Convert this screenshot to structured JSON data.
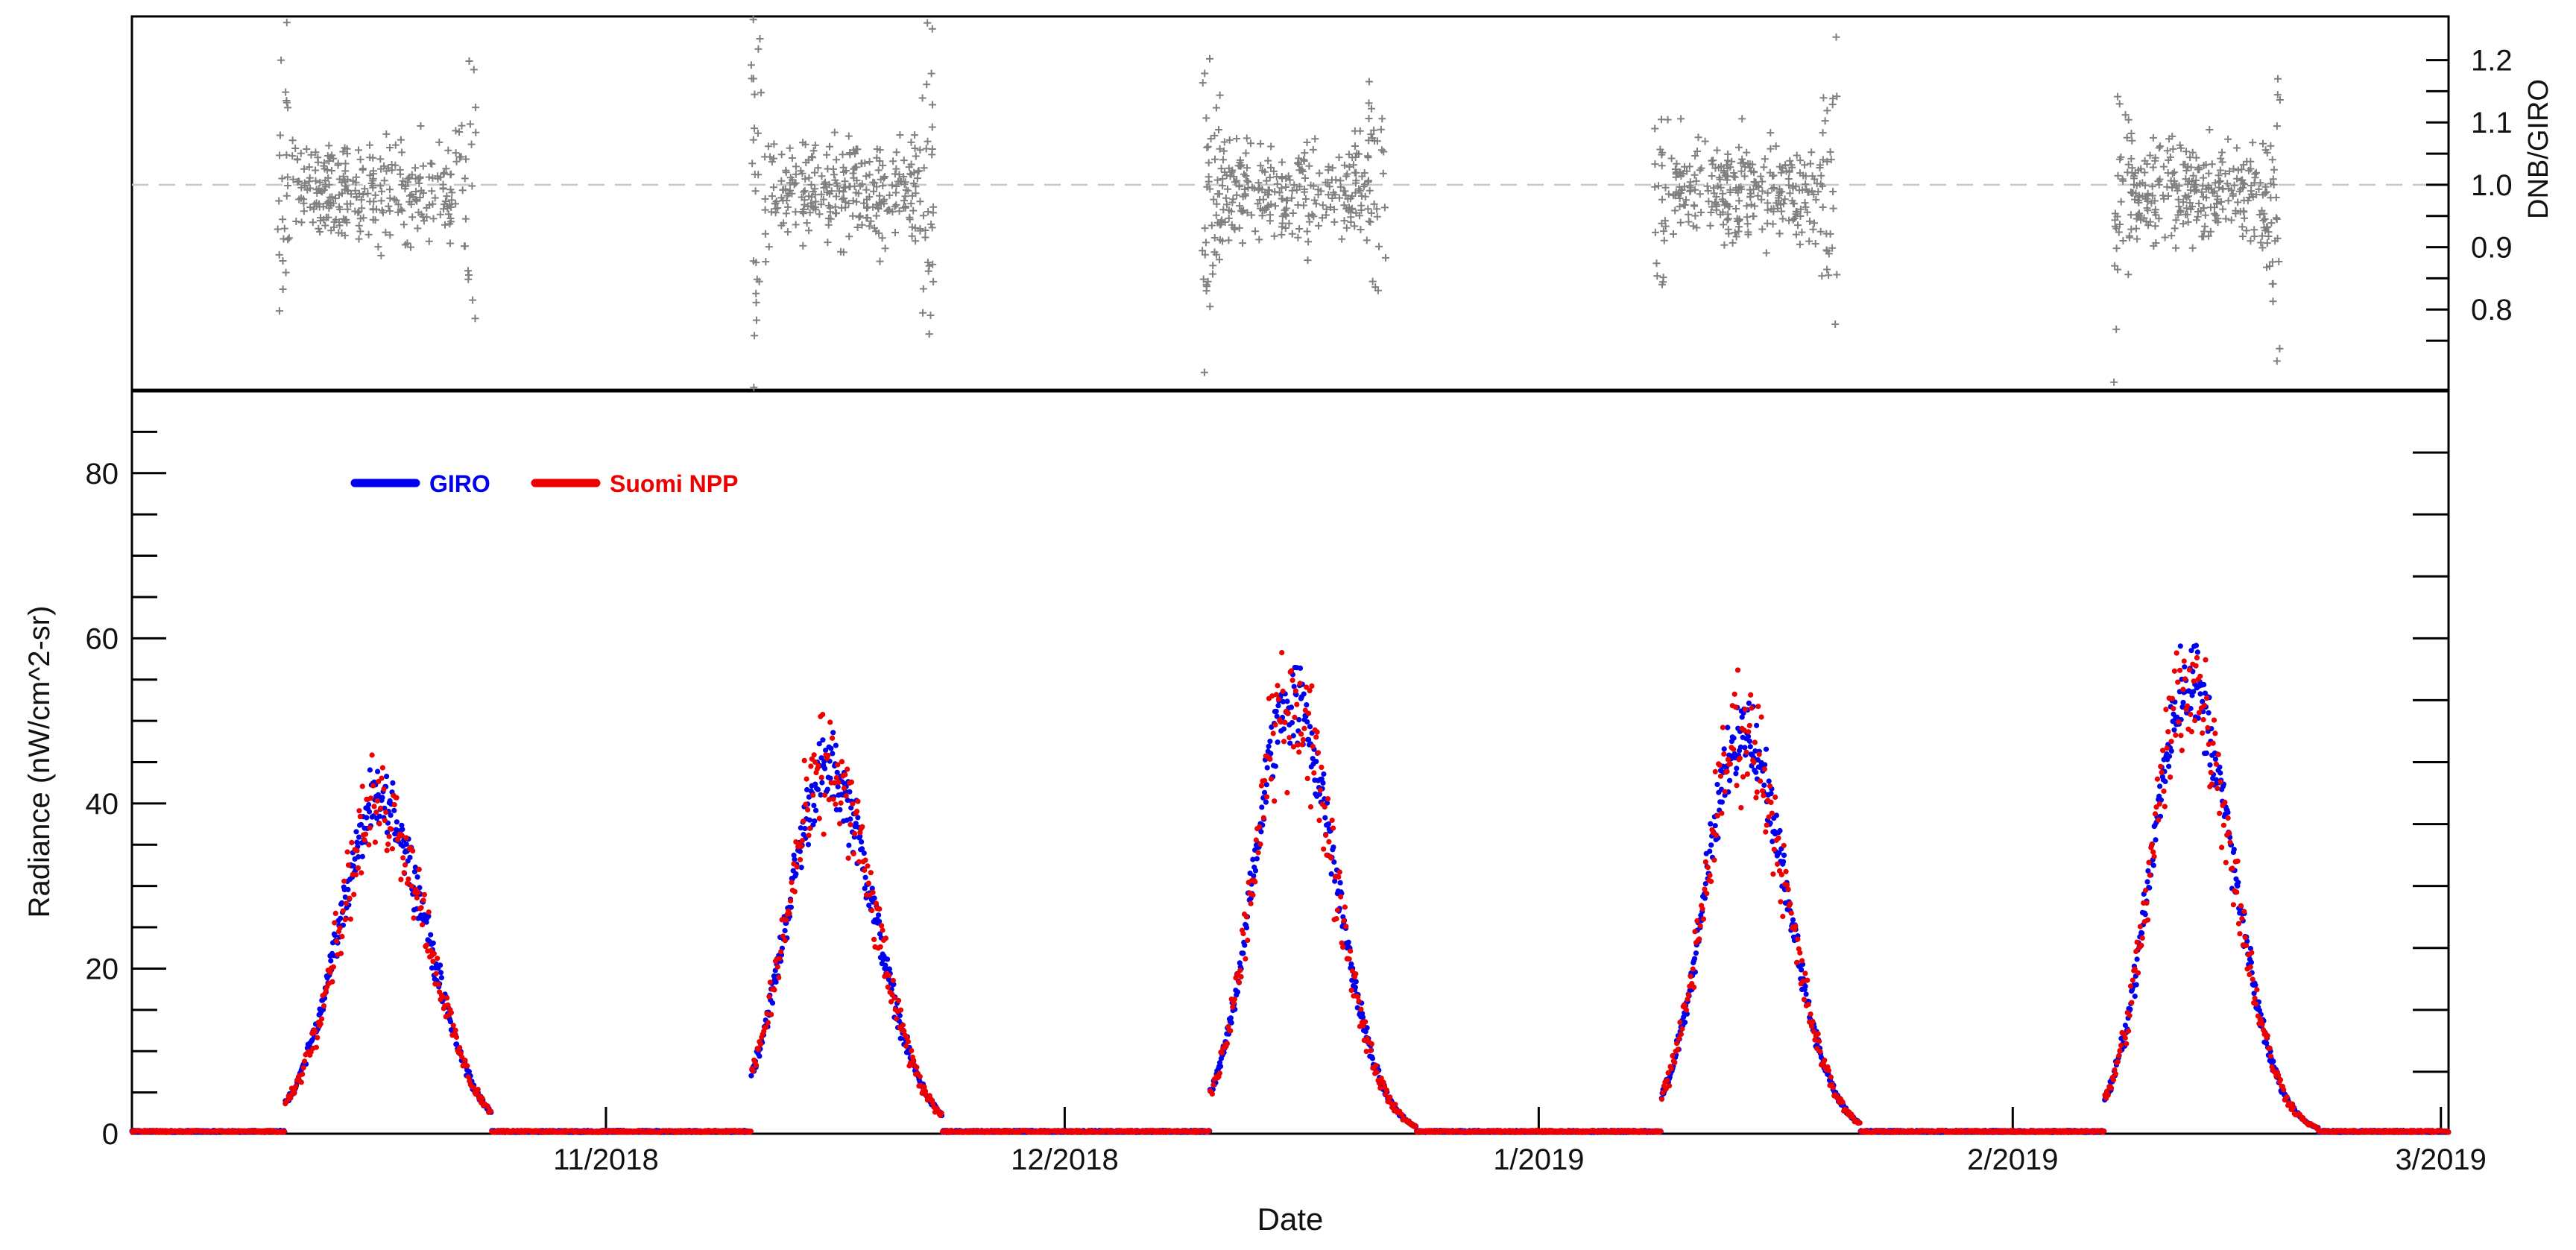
{
  "chart_data": {
    "type": "scatter",
    "xlabel": "Date",
    "x_ticks": [
      "11/2018",
      "12/2018",
      "1/2019",
      "2/2019",
      "3/2019"
    ],
    "x_tick_positions_day": [
      31,
      61,
      92,
      123,
      151
    ],
    "x_range_day": [
      0,
      151.5
    ],
    "upper_panel": {
      "series_name": "DNB/GIRO",
      "ylabel": "DNB/GIRO",
      "y_ticks": [
        "0.8",
        "0.9",
        "1.0",
        "1.1",
        "1.2"
      ],
      "ylim": [
        0.67,
        1.27
      ],
      "reference_line": 1.0,
      "marker": "+",
      "color": "#808080",
      "windows": [
        {
          "start": 9.5,
          "end": 22.5
        },
        {
          "start": 40.5,
          "end": 52.5
        },
        {
          "start": 70.0,
          "end": 82.0
        },
        {
          "start": 99.5,
          "end": 111.5
        },
        {
          "start": 129.5,
          "end": 140.5
        }
      ]
    },
    "lower_panel": {
      "ylabel": "Radiance (nW/cm^2-sr)",
      "left_y_ticks": [
        "0",
        "20",
        "40",
        "60",
        "80"
      ],
      "ylim": [
        0,
        90
      ],
      "legend": [
        {
          "name": "GIRO",
          "color": "#0000ee"
        },
        {
          "name": "Suomi NPP",
          "color": "#ee0000"
        }
      ],
      "peaks": [
        {
          "day": 16.3,
          "value": 40,
          "rise_days": 6.5,
          "fall_days": 7.0,
          "start": 10.0,
          "end": 23.5
        },
        {
          "day": 45.5,
          "value": 44,
          "rise_days": 6.0,
          "fall_days": 7.0,
          "start": 40.5,
          "end": 53.0
        },
        {
          "day": 75.8,
          "value": 53,
          "rise_days": 5.5,
          "fall_days": 6.5,
          "start": 70.5,
          "end": 84.0
        },
        {
          "day": 105.3,
          "value": 49,
          "rise_days": 5.5,
          "fall_days": 6.5,
          "start": 100.0,
          "end": 113.0
        },
        {
          "day": 134.5,
          "value": 55,
          "rise_days": 5.5,
          "fall_days": 6.5,
          "start": 129.0,
          "end": 143.0
        }
      ]
    }
  }
}
